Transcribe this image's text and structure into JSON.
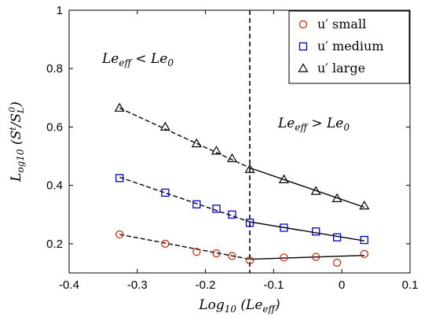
{
  "chart_data": {
    "type": "scatter",
    "xlabel": "Log₁₀ (Le_eff)",
    "ylabel": "L_og10 (S^t/S_L^0)",
    "xlim": [
      -0.4,
      0.1
    ],
    "ylim": [
      0.1,
      1.0
    ],
    "x_ticks": [
      "-0.4",
      "-0.3",
      "-0.2",
      "-0.1",
      "0",
      "0.1"
    ],
    "y_ticks": [
      "0.2",
      "0.4",
      "0.6",
      "0.8",
      "1"
    ],
    "grid": false,
    "legend_position": "top-right",
    "vertical_line": {
      "x": -0.135,
      "style": "dashed"
    },
    "annotations": {
      "left": "Le_eff < Le_0",
      "right": "Le_eff > Le_0"
    },
    "series": [
      {
        "name": "u′ small",
        "marker": "circle",
        "color": "#cc2200",
        "x": [
          -0.326,
          -0.259,
          -0.213,
          -0.184,
          -0.161,
          -0.135,
          -0.085,
          -0.038,
          -0.007,
          0.033
        ],
        "y": [
          0.232,
          0.2,
          0.172,
          0.167,
          0.158,
          0.143,
          0.153,
          0.155,
          0.135,
          0.165
        ]
      },
      {
        "name": "u′ medium",
        "marker": "square",
        "color": "#0000cc",
        "x": [
          -0.326,
          -0.259,
          -0.213,
          -0.184,
          -0.161,
          -0.135,
          -0.085,
          -0.038,
          -0.007,
          0.033
        ],
        "y": [
          0.425,
          0.375,
          0.335,
          0.32,
          0.3,
          0.272,
          0.255,
          0.242,
          0.222,
          0.213
        ]
      },
      {
        "name": "u′ large",
        "marker": "triangle",
        "color": "#000000",
        "x": [
          -0.326,
          -0.259,
          -0.213,
          -0.184,
          -0.161,
          -0.135,
          -0.085,
          -0.038,
          -0.007,
          0.033
        ],
        "y": [
          0.665,
          0.6,
          0.543,
          0.518,
          0.492,
          0.455,
          0.42,
          0.38,
          0.355,
          0.33
        ]
      }
    ],
    "fit_lines": [
      {
        "series": 0,
        "segment": "left",
        "x": [
          -0.326,
          -0.135
        ],
        "y": [
          0.232,
          0.147
        ],
        "style": "dashed"
      },
      {
        "series": 0,
        "segment": "right",
        "x": [
          -0.135,
          0.033
        ],
        "y": [
          0.147,
          0.16
        ],
        "style": "solid"
      },
      {
        "series": 1,
        "segment": "left",
        "x": [
          -0.326,
          -0.135
        ],
        "y": [
          0.428,
          0.275
        ],
        "style": "dashed"
      },
      {
        "series": 1,
        "segment": "right",
        "x": [
          -0.135,
          0.033
        ],
        "y": [
          0.275,
          0.21
        ],
        "style": "solid"
      },
      {
        "series": 2,
        "segment": "left",
        "x": [
          -0.326,
          -0.135
        ],
        "y": [
          0.665,
          0.46
        ],
        "style": "dashed"
      },
      {
        "series": 2,
        "segment": "right",
        "x": [
          -0.135,
          0.033
        ],
        "y": [
          0.46,
          0.325
        ],
        "style": "solid"
      }
    ]
  }
}
